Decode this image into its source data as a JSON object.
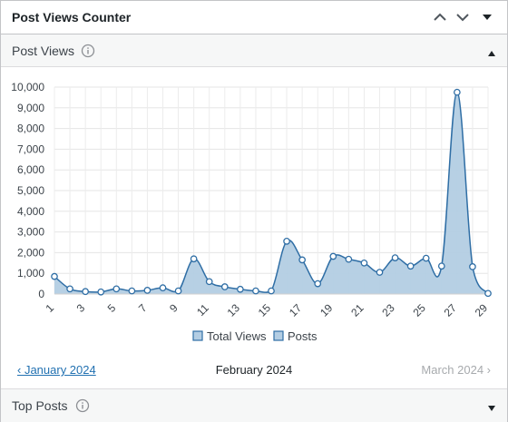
{
  "widget": {
    "title": "Post Views Counter"
  },
  "post_views_section": {
    "label": "Post Views",
    "info_icon": "info-icon",
    "toggle_icon": "triangle-up-icon"
  },
  "top_posts_section": {
    "label": "Top Posts",
    "info_icon": "info-icon",
    "toggle_icon": "triangle-down-icon"
  },
  "navigation": {
    "prev_label": "‹ January 2024",
    "current_label": "February 2024",
    "next_label": "March 2024 ›"
  },
  "colors": {
    "line": "#2f6ea5",
    "fill": "#b3cde3",
    "link": "#2271b1",
    "disabled": "#a7aaad"
  },
  "chart_data": {
    "type": "area",
    "x": [
      1,
      2,
      3,
      4,
      5,
      6,
      7,
      8,
      9,
      10,
      11,
      12,
      13,
      14,
      15,
      16,
      17,
      18,
      19,
      20,
      21,
      22,
      23,
      24,
      25,
      26,
      27,
      28,
      29
    ],
    "x_tick_labels": [
      "1",
      "3",
      "5",
      "7",
      "9",
      "11",
      "13",
      "15",
      "17",
      "19",
      "21",
      "23",
      "25",
      "27",
      "29"
    ],
    "y_tick_labels": [
      "0",
      "1,000",
      "2,000",
      "3,000",
      "4,000",
      "5,000",
      "6,000",
      "7,000",
      "8,000",
      "9,000",
      "10,000"
    ],
    "ylim": [
      0,
      10000
    ],
    "grid": true,
    "legend_position": "bottom",
    "legend": [
      "Total Views",
      "Posts"
    ],
    "series": [
      {
        "name": "Total Views",
        "values": [
          850,
          250,
          120,
          100,
          250,
          150,
          180,
          300,
          150,
          1700,
          600,
          350,
          230,
          150,
          150,
          2550,
          1650,
          500,
          1820,
          1680,
          1500,
          1050,
          1750,
          1350,
          1730,
          1350,
          9750,
          1320,
          30
        ]
      }
    ]
  }
}
